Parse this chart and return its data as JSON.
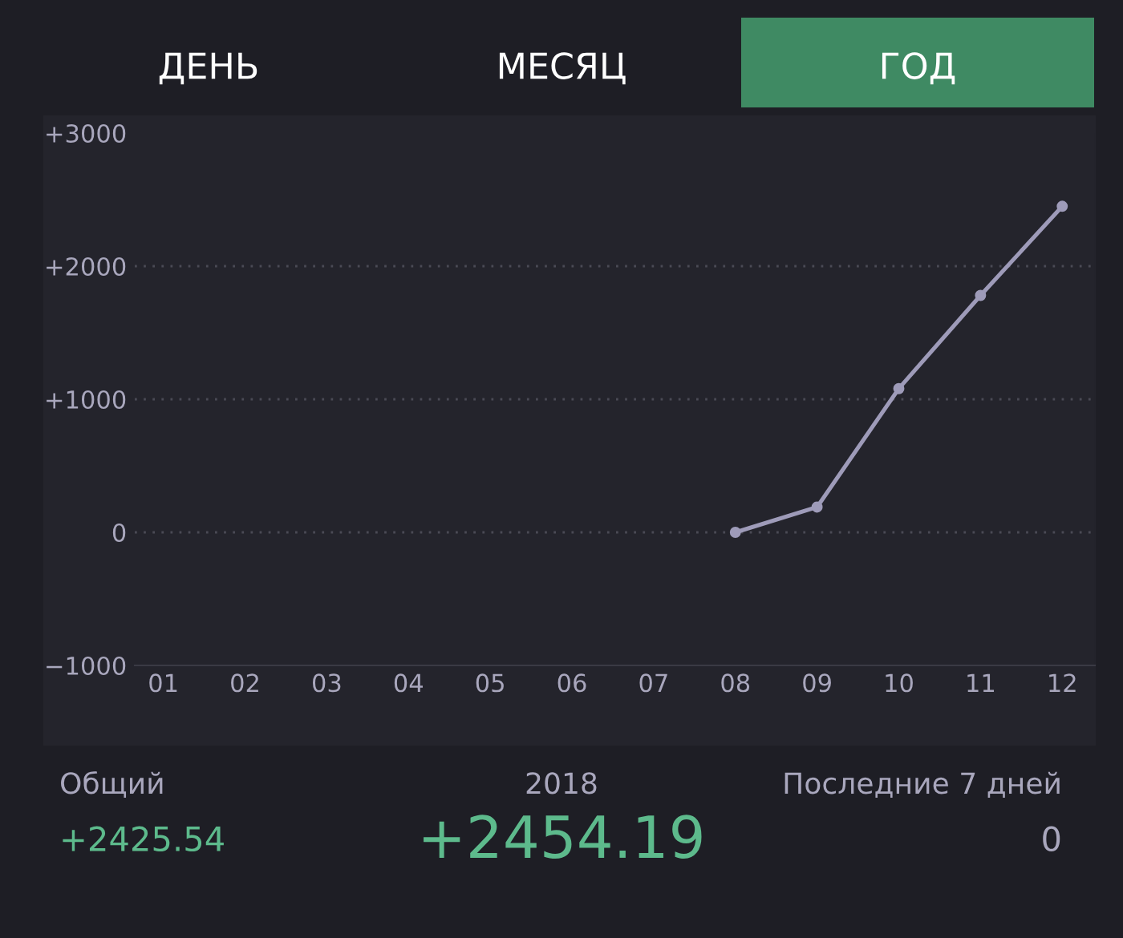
{
  "chart_data": {
    "type": "line",
    "categories": [
      "01",
      "02",
      "03",
      "04",
      "05",
      "06",
      "07",
      "08",
      "09",
      "10",
      "11",
      "12"
    ],
    "series": [
      {
        "color": "#9e9bb9",
        "values": [
          null,
          null,
          null,
          null,
          null,
          null,
          null,
          0,
          190,
          1080,
          1780,
          2450
        ]
      }
    ],
    "ylim": [
      -1000,
      3000
    ],
    "yticks": [
      {
        "value": -1000,
        "label": "−1000"
      },
      0,
      {
        "value": 1000,
        "label": "+1000"
      },
      {
        "value": 2000,
        "label": "+2000"
      },
      {
        "value": 3000,
        "label": "+3000"
      }
    ],
    "grid": "y",
    "marker": "circle",
    "line_style": "solid",
    "legend": false,
    "annotations": [
      "ДЕНЬ",
      "МЕСЯЦ",
      "ГОД",
      "Общий",
      "2018",
      "Последние 7 дней",
      "+2425.54",
      "+2454.19",
      "0"
    ]
  }
}
